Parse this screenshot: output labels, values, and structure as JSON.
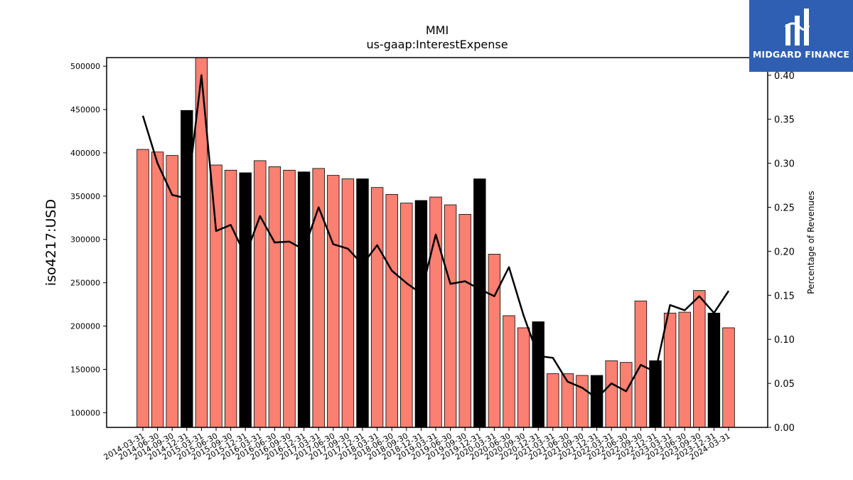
{
  "chart_data": {
    "type": "bar",
    "title": "MMI",
    "subtitle": "us-gaap:InterestExpense",
    "ylabel": "iso4217:USD",
    "y2label": "Percentage of Revenues",
    "ylim": [
      83000,
      510000
    ],
    "y2lim": [
      0,
      0.42
    ],
    "yticks": [
      "100000",
      "150000",
      "200000",
      "250000",
      "300000",
      "350000",
      "400000",
      "450000",
      "500000"
    ],
    "y2ticks": [
      "0.00",
      "0.05",
      "0.10",
      "0.15",
      "0.20",
      "0.25",
      "0.30",
      "0.35",
      "0.40"
    ],
    "bar_colors": {
      "quarter": "#fa8072",
      "q4": "#000000"
    },
    "line_color": "#000000",
    "categories": [
      "2014-03-31",
      "2014-06-30",
      "2014-09-30",
      "2014-12-31",
      "2015-03-31",
      "2015-06-30",
      "2015-09-30",
      "2015-12-31",
      "2016-03-31",
      "2016-06-30",
      "2016-09-30",
      "2016-12-31",
      "2017-03-31",
      "2017-06-30",
      "2017-09-30",
      "2017-12-31",
      "2018-03-31",
      "2018-06-30",
      "2018-09-30",
      "2018-12-31",
      "2019-03-31",
      "2019-06-30",
      "2019-09-30",
      "2019-12-31",
      "2020-03-31",
      "2020-06-30",
      "2020-09-30",
      "2020-12-31",
      "2021-03-31",
      "2021-06-30",
      "2021-09-30",
      "2021-12-31",
      "2022-03-31",
      "2022-06-30",
      "2022-09-30",
      "2022-12-31",
      "2023-03-31",
      "2023-06-30",
      "2023-09-30",
      "2023-12-31",
      "2024-03-31"
    ],
    "series": [
      {
        "type": "bar",
        "values": [
          404000,
          401000,
          397000,
          449000,
          512000,
          386000,
          380000,
          377000,
          391000,
          384000,
          380000,
          378000,
          382000,
          374000,
          370000,
          370000,
          360000,
          352000,
          342000,
          345000,
          349000,
          340000,
          329000,
          370000,
          283000,
          212000,
          198000,
          205000,
          145000,
          145000,
          143000,
          143000,
          160000,
          158000,
          229000,
          160000,
          215000,
          216000,
          241000,
          215000,
          198000
        ],
        "highlight": [
          false,
          false,
          false,
          true,
          false,
          false,
          false,
          true,
          false,
          false,
          false,
          true,
          false,
          false,
          false,
          true,
          false,
          false,
          false,
          true,
          false,
          false,
          false,
          true,
          false,
          false,
          false,
          true,
          false,
          false,
          false,
          true,
          false,
          false,
          false,
          true,
          false,
          false,
          false,
          true,
          false
        ]
      },
      {
        "type": "line",
        "axis": "right",
        "values": [
          0.354,
          0.3,
          0.264,
          0.26,
          0.4,
          0.223,
          0.23,
          0.195,
          0.24,
          0.21,
          0.211,
          0.202,
          0.25,
          0.208,
          0.203,
          0.185,
          0.207,
          0.178,
          0.164,
          0.152,
          0.219,
          0.163,
          0.166,
          0.157,
          0.149,
          0.182,
          0.127,
          0.081,
          0.079,
          0.052,
          0.045,
          0.033,
          0.05,
          0.041,
          0.071,
          0.063,
          0.139,
          0.133,
          0.149,
          0.13,
          0.155
        ]
      }
    ],
    "grid": false
  },
  "logo": {
    "text": "MIDGARD FINANCE",
    "icon": "midgard-logo-icon",
    "background": "#2f5fb3"
  }
}
